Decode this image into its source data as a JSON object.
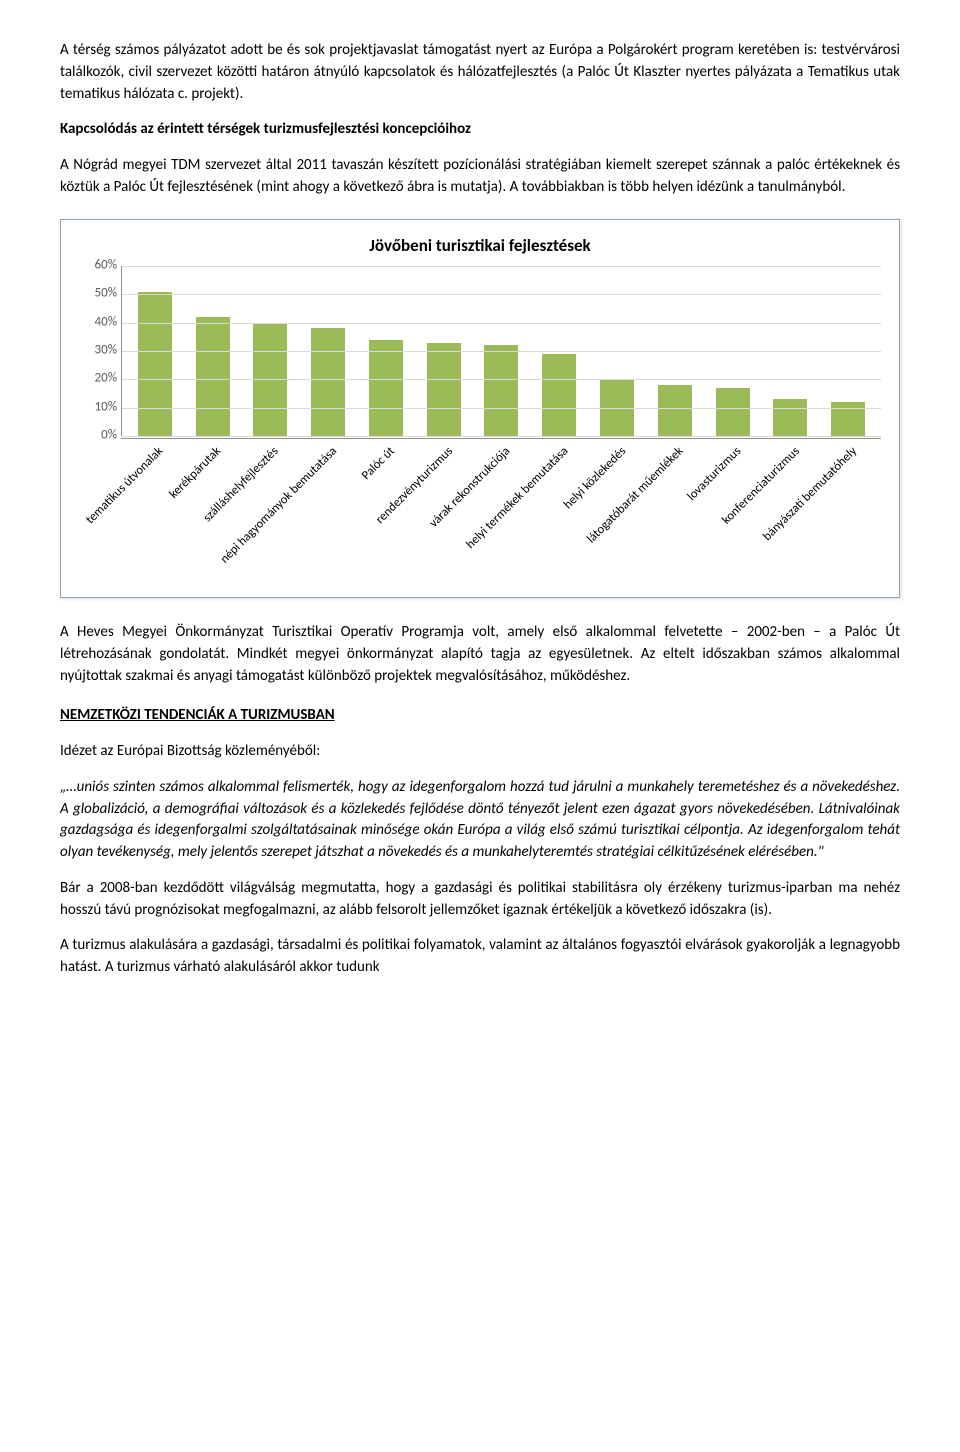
{
  "para1": "A térség számos pályázatot adott be és sok projektjavaslat támogatást nyert az Európa a Polgárokért program keretében is: testvérvárosi találkozók, civil szervezet közötti határon átnyúló kapcsolatok és hálózatfejlesztés (a Palóc Út Klaszter nyertes pályázata a Tematikus utak tematikus hálózata c. projekt).",
  "heading1": "Kapcsolódás az érintett térségek turizmusfejlesztési koncepcióihoz",
  "para2": "A Nógrád megyei TDM szervezet által 2011 tavaszán készített pozícionálási stratégiában kiemelt szerepet szánnak a palóc értékeknek és köztük a Palóc Út fejlesztésének (mint ahogy a következő ábra is mutatja). A továbbiakban is több helyen idézünk a tanulmányból.",
  "chart": {
    "title": "Jövőbeni turisztikai fejlesztések",
    "bar_color": "#9bbb59",
    "background_color": "#ffffff",
    "grid_color": "#d9d9d9",
    "axis_color": "#8e8e8e",
    "ymax": 60,
    "yticks": [
      "0%",
      "10%",
      "20%",
      "30%",
      "40%",
      "50%",
      "60%"
    ],
    "categories": [
      "tematikus útvonalak",
      "kerékpárutak",
      "szálláshelyfejlesztés",
      "népi hagyományok bemutatása",
      "Palóc út",
      "rendezvényturizmus",
      "várak rekonstrukciója",
      "helyi termékek bemutatása",
      "helyi közlekedés",
      "látogatóbarát műemlékek",
      "lovasturizmus",
      "konferenciaturizmus",
      "bányászati bemutatóhely"
    ],
    "values": [
      51,
      42,
      40,
      38,
      34,
      33,
      32,
      29,
      20,
      18,
      17,
      13,
      12
    ]
  },
  "para3": "A Heves Megyei Önkormányzat Turisztikai Operatív Programja volt, amely első alkalommal felvetette – 2002-ben – a Palóc Út létrehozásának gondolatát. Mindkét megyei önkormányzat alapító tagja az egyesületnek. Az eltelt időszakban számos alkalommal nyújtottak szakmai és anyagi támogatást különböző projektek megvalósításához, működéshez.",
  "heading2": "NEMZETKÖZI TENDENCIÁK A TURIZMUSBAN",
  "para4": "Idézet az Európai Bizottság közleményéből:",
  "quote": "„…uniós szinten számos alkalommal felismerték, hogy az idegenforgalom hozzá tud járulni a munkahely teremetéshez és a növekedéshez. A globalizáció, a demográfiai változások és a közlekedés fejlődése döntő tényezőt jelent ezen ágazat gyors növekedésében. Látnivalóinak gazdagsága és idegenforgalmi szolgáltatásainak minősége okán Európa a világ első számú turisztikai célpontja. Az idegenforgalom tehát olyan tevékenység, mely jelentős szerepet játszhat a növekedés és a munkahelyteremtés stratégiai célkitűzésének elérésében.\"",
  "para5": "Bár a 2008-ban kezdődött világválság megmutatta, hogy a gazdasági és politikai stabilitásra oly érzékeny turizmus-iparban ma nehéz hosszú távú prognózisokat megfogalmazni, az alább felsorolt jellemzőket igaznak értékeljük a következő időszakra (is).",
  "para6": "A turizmus alakulására a gazdasági, társadalmi és politikai folyamatok, valamint az általános fogyasztói elvárások gyakorolják a legnagyobb hatást. A turizmus várható alakulásáról akkor tudunk"
}
